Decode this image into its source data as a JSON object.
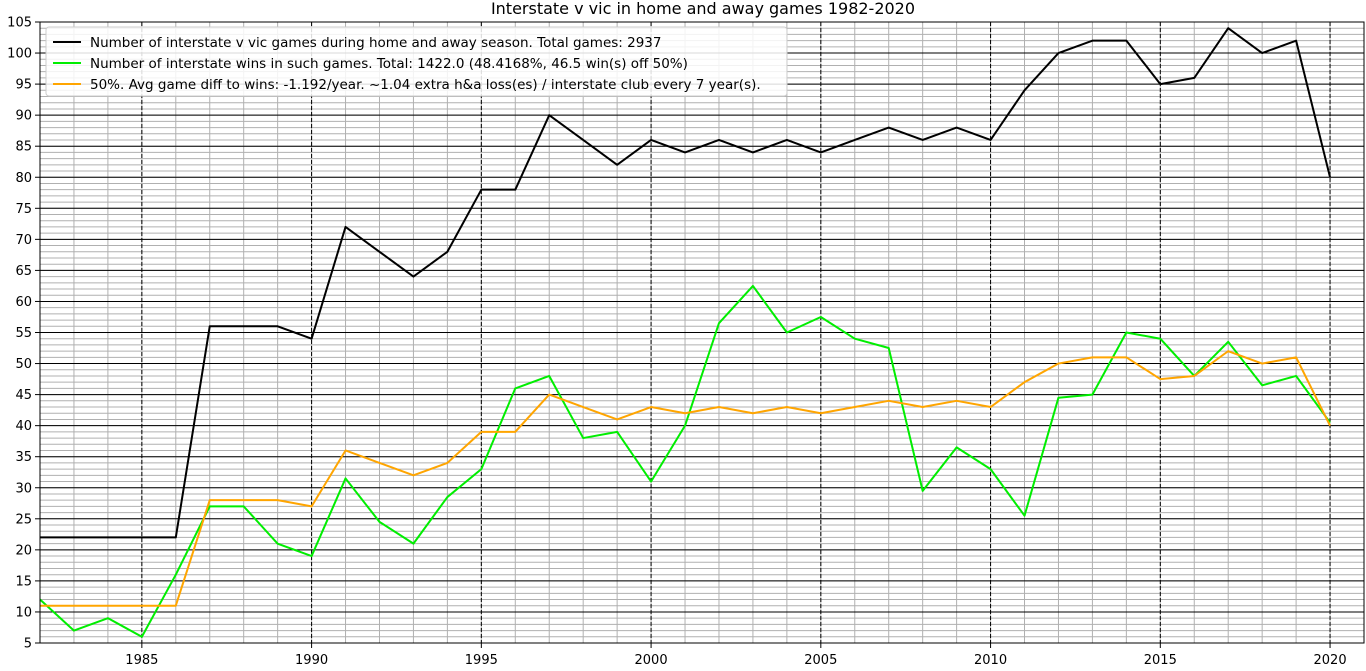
{
  "chart_data": {
    "type": "line",
    "title": "Interstate v vic in home and away games 1982-2020",
    "xlabel": "",
    "ylabel": "",
    "xlim": [
      1982,
      2021
    ],
    "ylim": [
      5,
      105
    ],
    "x_ticks": [
      1985,
      1990,
      1995,
      2000,
      2005,
      2010,
      2015,
      2020
    ],
    "y_ticks": [
      5,
      10,
      15,
      20,
      25,
      30,
      35,
      40,
      45,
      50,
      55,
      60,
      65,
      70,
      75,
      80,
      85,
      90,
      95,
      100,
      105
    ],
    "grid": {
      "major": true,
      "minor": true
    },
    "legend_position": "top-left",
    "x": [
      1982,
      1983,
      1984,
      1985,
      1986,
      1987,
      1988,
      1989,
      1990,
      1991,
      1992,
      1993,
      1994,
      1995,
      1996,
      1997,
      1998,
      1999,
      2000,
      2001,
      2002,
      2003,
      2004,
      2005,
      2006,
      2007,
      2008,
      2009,
      2010,
      2011,
      2012,
      2013,
      2014,
      2015,
      2016,
      2017,
      2018,
      2019,
      2020
    ],
    "series": [
      {
        "name": "Number of interstate v vic games during home and away season. Total games: 2937",
        "color": "#000000",
        "values": [
          22,
          22,
          22,
          22,
          22,
          56,
          56,
          56,
          54,
          72,
          68,
          64,
          68,
          78,
          78,
          90,
          86,
          82,
          86,
          84,
          86,
          84,
          86,
          84,
          86,
          88,
          86,
          88,
          86,
          94,
          100,
          102,
          102,
          95,
          96,
          104,
          100,
          102,
          80
        ]
      },
      {
        "name": "Number of interstate wins in such games. Total: 1422.0 (48.4168%, 46.5 win(s) off 50%)",
        "color": "#00ee00",
        "values": [
          12,
          7,
          9,
          6,
          16,
          27,
          27,
          21,
          19,
          31.5,
          24.5,
          21,
          28.5,
          33,
          46,
          48,
          38,
          39,
          31,
          40,
          56.5,
          62.5,
          55,
          57.5,
          54,
          52.5,
          29.5,
          36.5,
          33,
          25.5,
          44.5,
          45,
          55,
          54,
          48,
          53.5,
          46.5,
          48,
          40.5
        ]
      },
      {
        "name": "50%. Avg game diff to wins: -1.192/year. ~1.04 extra h&a loss(es) / interstate club every 7 year(s).",
        "color": "#ffa500",
        "values": [
          11,
          11,
          11,
          11,
          11,
          28,
          28,
          28,
          27,
          36,
          34,
          32,
          34,
          39,
          39,
          45,
          43,
          41,
          43,
          42,
          43,
          42,
          43,
          42,
          43,
          44,
          43,
          44,
          43,
          47,
          50,
          51,
          51,
          47.5,
          48,
          52,
          50,
          51,
          40
        ]
      }
    ]
  }
}
